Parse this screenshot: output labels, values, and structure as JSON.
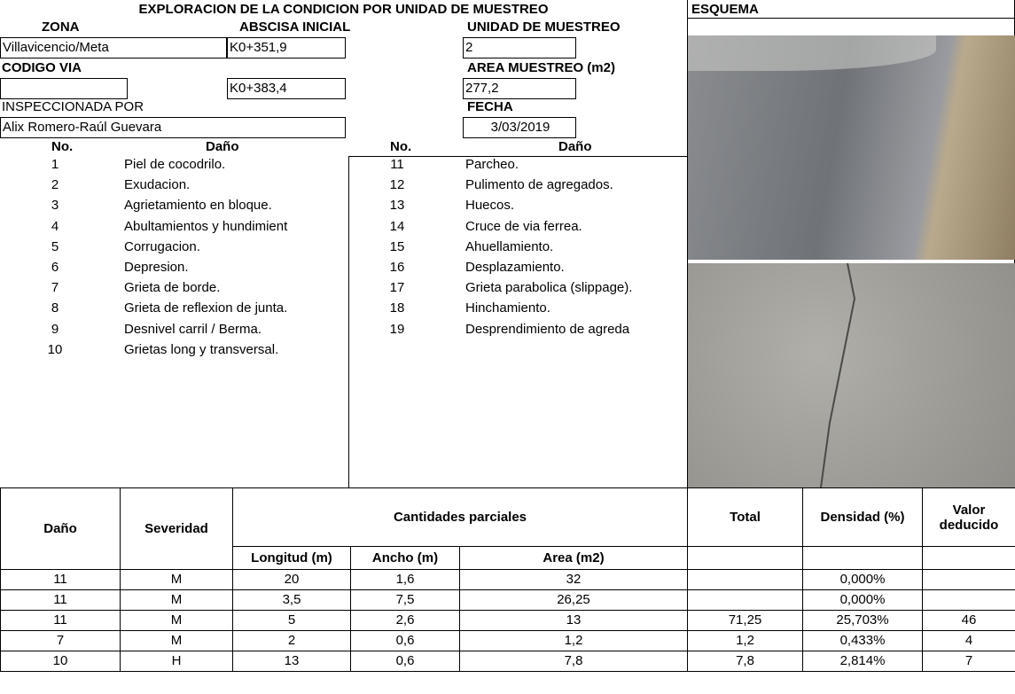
{
  "header": {
    "title": "EXPLORACION DE LA CONDICION POR UNIDAD DE MUESTREO",
    "scheme": "ESQUEMA"
  },
  "fields": {
    "zona_label": "ZONA",
    "zona": "Villavicencio/Meta",
    "abscisa_inicial_label": "ABSCISA INICIAL",
    "abscisa_inicial": "K0+351,9",
    "unidad_label": "UNIDAD DE MUESTREO",
    "unidad": "2",
    "codigo_label": "CODIGO VIA",
    "abscisa_final": "K0+383,4",
    "area_label": "AREA MUESTREO (m2)",
    "area": "277,2",
    "inspector_label": "INSPECCIONADA POR",
    "inspector": "Alix Romero-Raúl Guevara",
    "fecha_label": "FECHA",
    "fecha": "3/03/2019"
  },
  "damage_list": {
    "no_header": "No.",
    "name_header": "Daño",
    "left": [
      [
        "1",
        "Piel de cocodrilo."
      ],
      [
        "2",
        "Exudacion."
      ],
      [
        "3",
        "Agrietamiento en bloque."
      ],
      [
        "4",
        "Abultamientos y hundimient"
      ],
      [
        "5",
        "Corrugacion."
      ],
      [
        "6",
        "Depresion."
      ],
      [
        "7",
        "Grieta de borde."
      ],
      [
        "8",
        "Grieta de reflexion de junta."
      ],
      [
        "9",
        "Desnivel carril / Berma."
      ],
      [
        "10",
        "Grietas long y transversal."
      ]
    ],
    "right": [
      [
        "11",
        "Parcheo."
      ],
      [
        "12",
        "Pulimento de agregados."
      ],
      [
        "13",
        "Huecos."
      ],
      [
        "14",
        "Cruce de via ferrea."
      ],
      [
        "15",
        "Ahuellamiento."
      ],
      [
        "16",
        "Desplazamiento."
      ],
      [
        "17",
        "Grieta parabolica (slippage)."
      ],
      [
        "18",
        "Hinchamiento."
      ],
      [
        "19",
        "Desprendimiento de agreda"
      ]
    ]
  },
  "table": {
    "headers": {
      "dano": "Daño",
      "severidad": "Severidad",
      "parciales": "Cantidades parciales",
      "total": "Total",
      "densidad": "Densidad (%)",
      "valor": "Valor deducido",
      "longitud": "Longitud (m)",
      "ancho": "Ancho (m)",
      "area": "Area (m2)"
    },
    "rows": [
      [
        "11",
        "M",
        "20",
        "1,6",
        "32",
        null,
        "0,000%",
        null
      ],
      [
        "11",
        "M",
        "3,5",
        "7,5",
        "26,25",
        null,
        "0,000%",
        null
      ],
      [
        "11",
        "M",
        "5",
        "2,6",
        "13",
        "71,25",
        "25,703%",
        "46"
      ],
      [
        "7",
        "M",
        "2",
        "0,6",
        "1,2",
        "1,2",
        "0,433%",
        "4"
      ],
      [
        "10",
        "H",
        "13",
        "0,6",
        "7,8",
        "7,8",
        "2,814%",
        "7"
      ]
    ]
  }
}
